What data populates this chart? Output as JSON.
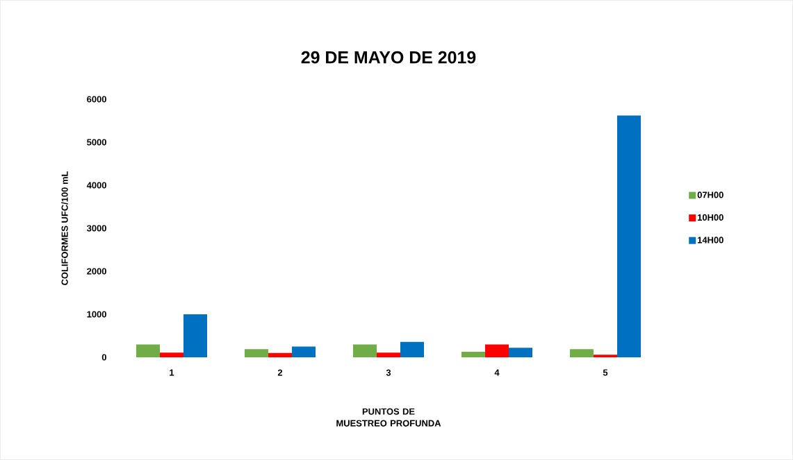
{
  "chart_data": {
    "type": "bar",
    "title": "29 DE MAYO DE 2019",
    "xlabel": "PUNTOS DE MUESTREO PROFUNDA",
    "ylabel": "COLIFORMES UFC/100 mL",
    "categories": [
      "1",
      "2",
      "3",
      "4",
      "5"
    ],
    "series": [
      {
        "name": "07H00",
        "color": "#70ad47",
        "values": [
          300,
          190,
          300,
          130,
          190
        ]
      },
      {
        "name": "10H00",
        "color": "#ff0000",
        "values": [
          110,
          100,
          110,
          300,
          60
        ]
      },
      {
        "name": "14H00",
        "color": "#0070c0",
        "values": [
          1000,
          250,
          360,
          220,
          5620
        ]
      }
    ],
    "ylim": [
      0,
      6000
    ],
    "yticks": [
      0,
      1000,
      2000,
      3000,
      4000,
      5000,
      6000
    ],
    "grid": false,
    "legend": "right"
  }
}
